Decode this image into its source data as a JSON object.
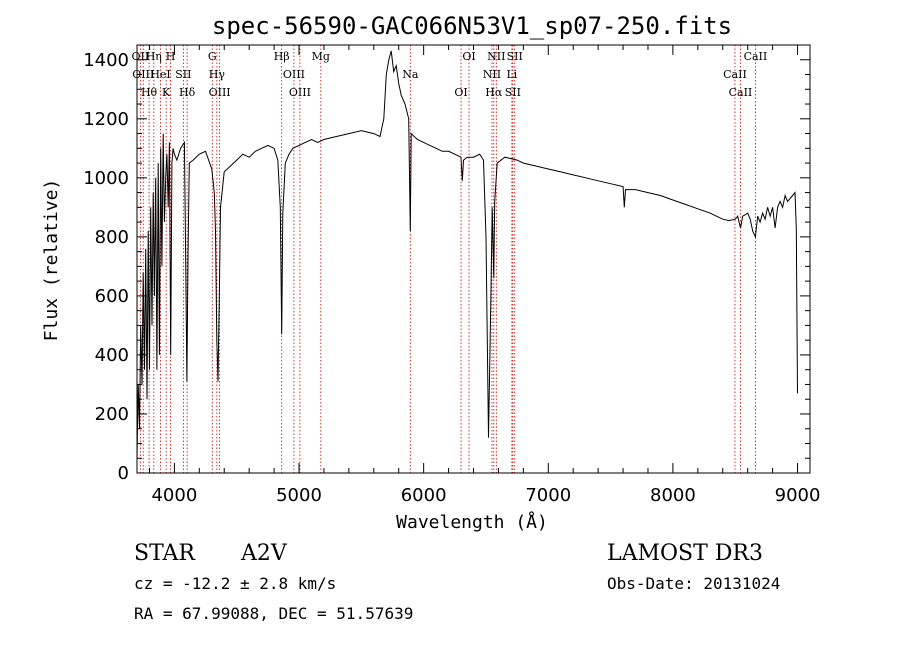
{
  "chart_data": {
    "type": "line",
    "title": "spec-56590-GAC066N53V1_sp07-250.fits",
    "xlabel": "Wavelength (Å)",
    "ylabel": "Flux (relative)",
    "xlim": [
      3700,
      9100
    ],
    "ylim": [
      0,
      1450
    ],
    "xticks": [
      4000,
      5000,
      6000,
      7000,
      8000,
      9000
    ],
    "xtick_labels": [
      "4000",
      "5000",
      "6000",
      "7000",
      "8000",
      "9000"
    ],
    "yticks": [
      0,
      200,
      400,
      600,
      800,
      1000,
      1200,
      1400
    ],
    "ytick_labels": [
      "0",
      "200",
      "400",
      "600",
      "800",
      "1000",
      "1200",
      "1400"
    ],
    "series": [
      {
        "name": "spectrum",
        "points": [
          [
            3700,
            50
          ],
          [
            3710,
            300
          ],
          [
            3720,
            150
          ],
          [
            3730,
            500
          ],
          [
            3740,
            300
          ],
          [
            3750,
            680
          ],
          [
            3760,
            350
          ],
          [
            3770,
            760
          ],
          [
            3780,
            250
          ],
          [
            3790,
            820
          ],
          [
            3800,
            350
          ],
          [
            3810,
            900
          ],
          [
            3820,
            500
          ],
          [
            3830,
            950
          ],
          [
            3840,
            600
          ],
          [
            3850,
            1000
          ],
          [
            3860,
            350
          ],
          [
            3870,
            1050
          ],
          [
            3880,
            400
          ],
          [
            3890,
            1100
          ],
          [
            3900,
            700
          ],
          [
            3910,
            1150
          ],
          [
            3920,
            850
          ],
          [
            3930,
            1000
          ],
          [
            3940,
            1080
          ],
          [
            3950,
            900
          ],
          [
            3960,
            1120
          ],
          [
            3970,
            400
          ],
          [
            3980,
            1050
          ],
          [
            3990,
            1100
          ],
          [
            4000,
            1080
          ],
          [
            4020,
            1060
          ],
          [
            4050,
            1100
          ],
          [
            4080,
            1120
          ],
          [
            4090,
            750
          ],
          [
            4100,
            310
          ],
          [
            4110,
            760
          ],
          [
            4120,
            1050
          ],
          [
            4150,
            1060
          ],
          [
            4200,
            1080
          ],
          [
            4250,
            1090
          ],
          [
            4300,
            1030
          ],
          [
            4320,
            950
          ],
          [
            4330,
            820
          ],
          [
            4340,
            450
          ],
          [
            4350,
            310
          ],
          [
            4360,
            600
          ],
          [
            4370,
            900
          ],
          [
            4400,
            1020
          ],
          [
            4450,
            1040
          ],
          [
            4500,
            1060
          ],
          [
            4550,
            1080
          ],
          [
            4600,
            1070
          ],
          [
            4650,
            1090
          ],
          [
            4700,
            1100
          ],
          [
            4750,
            1110
          ],
          [
            4800,
            1100
          ],
          [
            4830,
            1060
          ],
          [
            4850,
            900
          ],
          [
            4861,
            470
          ],
          [
            4870,
            880
          ],
          [
            4890,
            1050
          ],
          [
            4920,
            1080
          ],
          [
            4950,
            1100
          ],
          [
            5000,
            1110
          ],
          [
            5050,
            1120
          ],
          [
            5100,
            1130
          ],
          [
            5150,
            1120
          ],
          [
            5200,
            1130
          ],
          [
            5300,
            1140
          ],
          [
            5400,
            1150
          ],
          [
            5500,
            1160
          ],
          [
            5600,
            1150
          ],
          [
            5650,
            1140
          ],
          [
            5680,
            1200
          ],
          [
            5700,
            1350
          ],
          [
            5720,
            1400
          ],
          [
            5740,
            1430
          ],
          [
            5760,
            1360
          ],
          [
            5780,
            1380
          ],
          [
            5800,
            1320
          ],
          [
            5820,
            1280
          ],
          [
            5850,
            1250
          ],
          [
            5880,
            1200
          ],
          [
            5893,
            820
          ],
          [
            5900,
            1150
          ],
          [
            5950,
            1130
          ],
          [
            6000,
            1120
          ],
          [
            6050,
            1110
          ],
          [
            6100,
            1100
          ],
          [
            6150,
            1090
          ],
          [
            6200,
            1090
          ],
          [
            6250,
            1080
          ],
          [
            6300,
            1070
          ],
          [
            6310,
            990
          ],
          [
            6320,
            1060
          ],
          [
            6350,
            1070
          ],
          [
            6400,
            1070
          ],
          [
            6450,
            1080
          ],
          [
            6480,
            1060
          ],
          [
            6500,
            800
          ],
          [
            6520,
            120
          ],
          [
            6540,
            600
          ],
          [
            6550,
            900
          ],
          [
            6563,
            660
          ],
          [
            6570,
            920
          ],
          [
            6590,
            1050
          ],
          [
            6650,
            1070
          ],
          [
            6700,
            1065
          ],
          [
            6750,
            1060
          ],
          [
            6800,
            1050
          ],
          [
            6900,
            1040
          ],
          [
            7000,
            1030
          ],
          [
            7100,
            1020
          ],
          [
            7200,
            1010
          ],
          [
            7300,
            1000
          ],
          [
            7400,
            990
          ],
          [
            7500,
            980
          ],
          [
            7600,
            970
          ],
          [
            7610,
            900
          ],
          [
            7620,
            960
          ],
          [
            7700,
            960
          ],
          [
            7800,
            950
          ],
          [
            7900,
            940
          ],
          [
            8000,
            925
          ],
          [
            8100,
            910
          ],
          [
            8200,
            895
          ],
          [
            8300,
            880
          ],
          [
            8400,
            860
          ],
          [
            8450,
            855
          ],
          [
            8500,
            860
          ],
          [
            8520,
            870
          ],
          [
            8542,
            830
          ],
          [
            8560,
            870
          ],
          [
            8600,
            880
          ],
          [
            8620,
            860
          ],
          [
            8640,
            820
          ],
          [
            8662,
            800
          ],
          [
            8680,
            870
          ],
          [
            8700,
            850
          ],
          [
            8720,
            880
          ],
          [
            8740,
            860
          ],
          [
            8760,
            900
          ],
          [
            8780,
            870
          ],
          [
            8800,
            900
          ],
          [
            8820,
            830
          ],
          [
            8840,
            900
          ],
          [
            8860,
            920
          ],
          [
            8880,
            900
          ],
          [
            8900,
            940
          ],
          [
            8920,
            920
          ],
          [
            8940,
            930
          ],
          [
            8960,
            940
          ],
          [
            8980,
            950
          ],
          [
            8990,
            830
          ],
          [
            9000,
            270
          ]
        ]
      }
    ],
    "line_markers": [
      {
        "wavelength": 3727,
        "label": "OII"
      },
      {
        "wavelength": 3750,
        "label": "OIII"
      },
      {
        "wavelength": 3797,
        "label": "Hθ"
      },
      {
        "wavelength": 3835,
        "label": "Hη"
      },
      {
        "wavelength": 3889,
        "label": "HeI"
      },
      {
        "wavelength": 3934,
        "label": "K"
      },
      {
        "wavelength": 3969,
        "label": "H"
      },
      {
        "wavelength": 4072,
        "label": "SII"
      },
      {
        "wavelength": 4102,
        "label": "Hδ"
      },
      {
        "wavelength": 4304,
        "label": "G"
      },
      {
        "wavelength": 4341,
        "label": "Hγ"
      },
      {
        "wavelength": 4363,
        "label": "OIII"
      },
      {
        "wavelength": 4861,
        "label": "Hβ"
      },
      {
        "wavelength": 4959,
        "label": "OIII"
      },
      {
        "wavelength": 5007,
        "label": "OIII"
      },
      {
        "wavelength": 5175,
        "label": "Mg"
      },
      {
        "wavelength": 5893,
        "label": "Na"
      },
      {
        "wavelength": 6300,
        "label": "OI"
      },
      {
        "wavelength": 6364,
        "label": "OI"
      },
      {
        "wavelength": 6548,
        "label": "NII"
      },
      {
        "wavelength": 6563,
        "label": "Hα"
      },
      {
        "wavelength": 6583,
        "label": "NII"
      },
      {
        "wavelength": 6708,
        "label": "Li"
      },
      {
        "wavelength": 6716,
        "label": "SII"
      },
      {
        "wavelength": 6731,
        "label": "SII"
      },
      {
        "wavelength": 8498,
        "label": "CaII"
      },
      {
        "wavelength": 8542,
        "label": "CaII"
      },
      {
        "wavelength": 8662,
        "label": "CaII"
      }
    ]
  },
  "info": {
    "object_class": "STAR",
    "subclass": "A2V",
    "redshift": "cz = -12.2 ± 2.8 km/s",
    "coordinates": "RA =  67.99088, DEC =  51.57639",
    "survey": "LAMOST DR3",
    "obs_date": "Obs-Date: 20131024"
  },
  "colors": {
    "line": "#000000",
    "marker": "#cc0000",
    "background": "#ffffff"
  }
}
